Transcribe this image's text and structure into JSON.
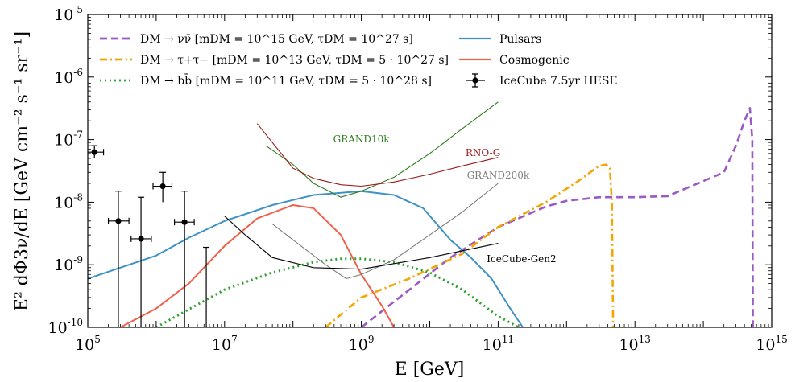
{
  "chart_data": {
    "type": "line",
    "xscale": "log",
    "yscale": "log",
    "xlim": [
      100000.0,
      1000000000000000.0
    ],
    "ylim": [
      1e-10,
      1e-05
    ],
    "xlabel": "E [GeV]",
    "ylabel": "E² dΦ3ν/dE [GeV cm⁻² s⁻¹ sr⁻¹]",
    "x_ticks": [
      "10^5",
      "10^7",
      "10^9",
      "10^11",
      "10^13",
      "10^15"
    ],
    "y_ticks": [
      "10^-10",
      "10^-9",
      "10^-8",
      "10^-7",
      "10^-6",
      "10^-5"
    ],
    "legend_position": "top",
    "legend_left": [
      {
        "label": "DM → νν̄ [mDM = 10^15 GeV, τDM = 10^27 s]",
        "color": "#9B59C6",
        "style": "dashed"
      },
      {
        "label": "DM → τ+τ− [mDM = 10^13 GeV, τDM = 5 · 10^27 s]",
        "color": "#F5A400",
        "style": "dashdot"
      },
      {
        "label": "DM → bb̄ [mDM = 10^11 GeV, τDM = 5 · 10^28 s]",
        "color": "#2CA02C",
        "style": "dotted"
      }
    ],
    "legend_right": [
      {
        "label": "Pulsars",
        "color": "#3F92C6",
        "style": "solid"
      },
      {
        "label": "Cosmogenic",
        "color": "#F0604A",
        "style": "solid"
      },
      {
        "label": "IceCube 7.5yr HESE",
        "color": "#000000",
        "style": "errorbar"
      }
    ],
    "series": [
      {
        "name": "DM → νν̄",
        "color": "#9B59C6",
        "style": "dashed",
        "x": [
          1000000000.0,
          20000000000.0,
          100000000000.0,
          500000000000.0,
          1000000000000.0,
          3000000000000.0,
          10000000000000.0,
          30000000000000.0,
          200000000000000.0,
          300000000000000.0,
          400000000000000.0,
          480000000000000.0,
          520000000000000.0,
          530000000000000.0
        ],
        "y": [
          1e-10,
          1.3e-09,
          4e-09,
          8.5e-09,
          1.05e-08,
          1.2e-08,
          1.2e-08,
          1.25e-08,
          3e-08,
          8e-08,
          2e-07,
          3.2e-07,
          1e-07,
          1e-10
        ]
      },
      {
        "name": "DM → τ+τ−",
        "color": "#F5A400",
        "style": "dashdot",
        "x": [
          300000000.0,
          1000000000.0,
          5000000000.0,
          30000000000.0,
          100000000000.0,
          500000000000.0,
          1500000000000.0,
          3000000000000.0,
          3800000000000.0,
          4300000000000.0,
          4600000000000.0,
          4800000000000.0
        ],
        "y": [
          1e-10,
          3e-10,
          6e-10,
          1.5e-09,
          4e-09,
          1e-08,
          2.2e-08,
          3.8e-08,
          4e-08,
          3.5e-08,
          1e-08,
          1e-10
        ]
      },
      {
        "name": "DM → bb̄",
        "color": "#2CA02C",
        "style": "dotted",
        "x": [
          1000000.0,
          10000000.0,
          50000000.0,
          200000000.0,
          500000000.0,
          1000000000.0,
          3000000000.0,
          10000000000.0,
          30000000000.0,
          100000000000.0,
          200000000000.0
        ],
        "y": [
          1e-10,
          4e-10,
          7.5e-10,
          1.1e-09,
          1.25e-09,
          1.25e-09,
          1.1e-09,
          7.5e-10,
          4e-10,
          1.5e-10,
          1e-10
        ]
      },
      {
        "name": "Pulsars",
        "color": "#3F92C6",
        "style": "solid",
        "x": [
          100000.0,
          1000000.0,
          3000000.0,
          10000000.0,
          50000000.0,
          200000000.0,
          1000000000.0,
          3000000000.0,
          8000000000.0,
          20000000000.0,
          40000000000.0,
          80000000000.0,
          150000000000.0,
          230000000000.0
        ],
        "y": [
          6e-10,
          1.4e-09,
          2.7e-09,
          5e-09,
          9e-09,
          1.3e-08,
          1.5e-08,
          1.3e-08,
          8e-09,
          2.5e-09,
          1.3e-09,
          6e-10,
          2e-10,
          1e-10
        ]
      },
      {
        "name": "Cosmogenic",
        "color": "#F0604A",
        "style": "solid",
        "x": [
          300000.0,
          1000000.0,
          3000000.0,
          10000000.0,
          30000000.0,
          100000000.0,
          200000000.0,
          500000000.0,
          1000000000.0,
          2000000000.0,
          3000000000.0
        ],
        "y": [
          1e-10,
          2e-10,
          5e-10,
          2e-09,
          5.5e-09,
          9e-09,
          8e-09,
          3e-09,
          7e-10,
          2.2e-10,
          1e-10
        ]
      },
      {
        "name": "GRAND10k",
        "color": "#2E7D1F",
        "style": "solid",
        "x": [
          40000000.0,
          100000000.0,
          200000000.0,
          500000000.0,
          1000000000.0,
          3000000000.0,
          10000000000.0,
          30000000000.0,
          100000000000.0
        ],
        "y": [
          8e-08,
          4e-08,
          2e-08,
          1.2e-08,
          1.5e-08,
          2.5e-08,
          6e-08,
          1.5e-07,
          4e-07
        ]
      },
      {
        "name": "RNO-G",
        "color": "#9B1B1B",
        "style": "solid",
        "x": [
          30000000.0,
          60000000.0,
          100000000.0,
          200000000.0,
          500000000.0,
          1000000000.0,
          3000000000.0,
          10000000000.0,
          30000000000.0,
          100000000000.0
        ],
        "y": [
          1.8e-07,
          7e-08,
          3.5e-08,
          2.4e-08,
          1.9e-08,
          1.8e-08,
          2.1e-08,
          2.8e-08,
          3.8e-08,
          5.2e-08
        ]
      },
      {
        "name": "GRAND200k",
        "color": "#7F7F7F",
        "style": "solid",
        "x": [
          50000000.0,
          100000000.0,
          300000000.0,
          600000000.0,
          1000000000.0,
          3000000000.0,
          10000000000.0,
          30000000000.0,
          100000000000.0
        ],
        "y": [
          4.5e-09,
          2.5e-09,
          1e-09,
          6e-10,
          7e-10,
          1.2e-09,
          3e-09,
          7e-09,
          2e-08
        ]
      },
      {
        "name": "IceCube-Gen2",
        "color": "#000000",
        "style": "solid",
        "x": [
          10000000.0,
          20000000.0,
          50000000.0,
          200000000.0,
          1000000000.0,
          10000000000.0,
          100000000000.0
        ],
        "y": [
          6e-09,
          3e-09,
          1.3e-09,
          9e-10,
          8.5e-10,
          1.3e-09,
          2.2e-09
        ]
      }
    ],
    "curve_labels": [
      {
        "text": "GRAND10k",
        "color": "#2E7D1F"
      },
      {
        "text": "RNO-G",
        "color": "#9B1B1B"
      },
      {
        "text": "GRAND200k",
        "color": "#7F7F7F"
      },
      {
        "text": "IceCube-Gen2",
        "color": "#000000"
      }
    ],
    "data_points": {
      "name": "IceCube 7.5yr HESE",
      "points": [
        {
          "x": 125000.0,
          "y": 6.3e-08,
          "xerr": [
            90000.0,
            170000.0
          ],
          "yerr": [
            5e-08,
            8e-08
          ]
        },
        {
          "x": 280000.0,
          "y": 5e-09,
          "xerr": [
            200000.0,
            400000.0
          ],
          "yerr": [
            1e-10,
            1.5e-08
          ]
        },
        {
          "x": 600000.0,
          "y": 2.6e-09,
          "xerr": [
            430000.0,
            850000.0
          ],
          "yerr": [
            1e-10,
            1.2e-08
          ]
        },
        {
          "x": 1250000.0,
          "y": 1.8e-08,
          "xerr": [
            900000.0,
            1700000.0
          ],
          "yerr": [
            1e-08,
            3e-08
          ]
        },
        {
          "x": 2600000.0,
          "y": 4.8e-09,
          "xerr": [
            1850000.0,
            3600000.0
          ],
          "yerr": [
            1e-10,
            1.5e-08
          ]
        },
        {
          "x": 5400000.0,
          "y": 1.9e-09,
          "xerr": [
            5400000.0,
            5400000.0
          ],
          "yerr": [
            1e-10,
            1.9e-09
          ]
        }
      ]
    }
  }
}
